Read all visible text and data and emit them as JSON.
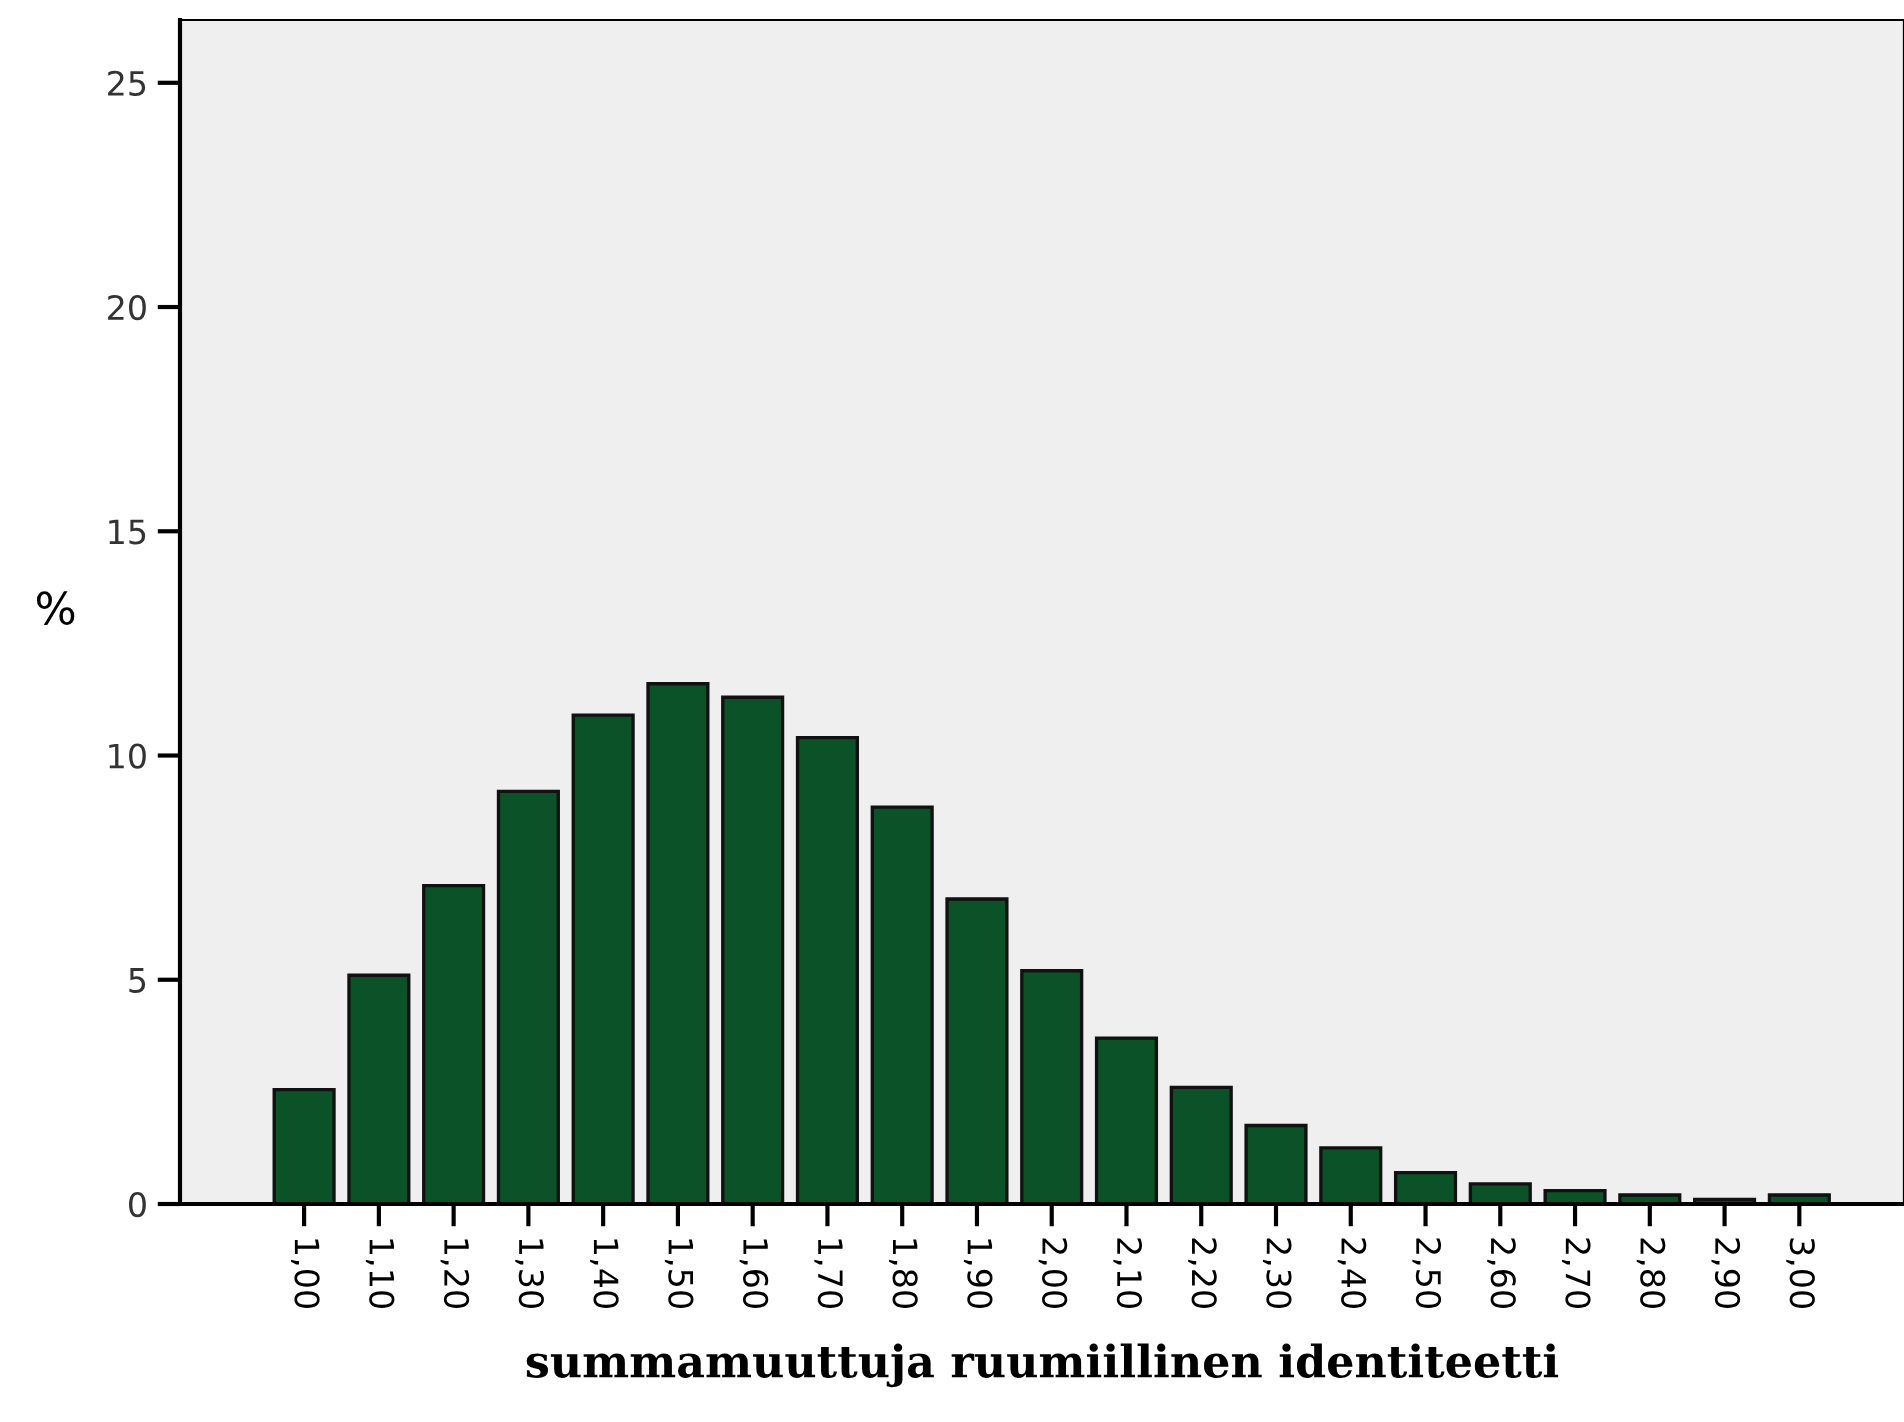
{
  "chart_data": {
    "type": "bar",
    "xlabel": "summamuuttuja ruumiillinen identiteetti",
    "ylabel": "%",
    "categories": [
      "1,00",
      "1,10",
      "1,20",
      "1,30",
      "1,40",
      "1,50",
      "1,60",
      "1,70",
      "1,80",
      "1,90",
      "2,00",
      "2,10",
      "2,20",
      "2,30",
      "2,40",
      "2,50",
      "2,60",
      "2,70",
      "2,80",
      "2,90",
      "3,00"
    ],
    "values": [
      2.55,
      5.1,
      7.1,
      9.2,
      10.9,
      11.6,
      11.3,
      10.4,
      8.85,
      6.8,
      5.2,
      3.7,
      2.6,
      1.75,
      1.25,
      0.7,
      0.45,
      0.3,
      0.2,
      0.1,
      0.2
    ],
    "color": "#0b5229",
    "ylim": [
      0,
      26.4
    ],
    "yticks": [
      0,
      5,
      10,
      15,
      20,
      25
    ],
    "grid": false
  }
}
